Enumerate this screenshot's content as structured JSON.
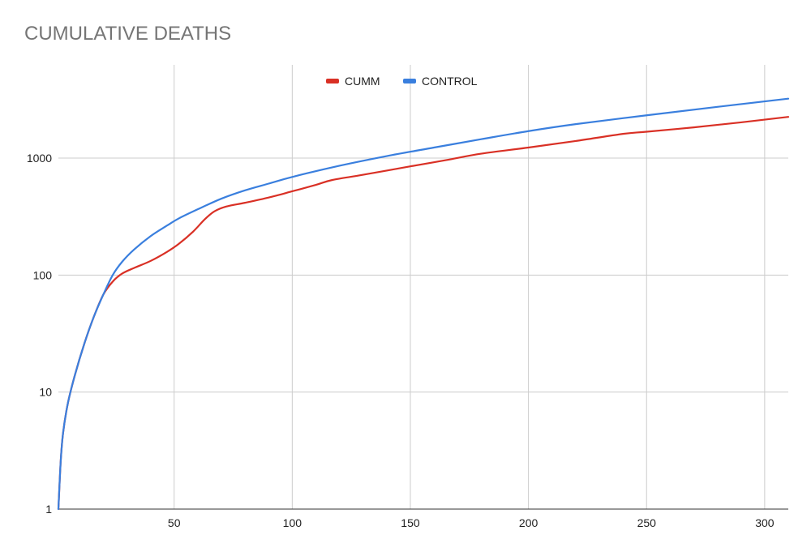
{
  "chart_data": {
    "type": "line",
    "title": "CUMULATIVE DEATHS",
    "xlabel": "",
    "ylabel": "",
    "x_scale": "linear",
    "y_scale": "log",
    "xlim": [
      1,
      310
    ],
    "ylim": [
      1,
      5000
    ],
    "x_ticks": [
      50,
      100,
      150,
      200,
      250,
      300
    ],
    "x_tick_labels": [
      "50",
      "100",
      "150",
      "200",
      "250",
      "300"
    ],
    "y_ticks": [
      1,
      10,
      100,
      1000
    ],
    "y_tick_labels": [
      "1",
      "10",
      "100",
      "1000"
    ],
    "grid": true,
    "legend_position": "top",
    "colors": {
      "CUMM": "#d93025",
      "CONTROL": "#3a7fde"
    },
    "series": [
      {
        "name": "CUMM",
        "color": "#d93025",
        "points": [
          [
            1,
            1
          ],
          [
            2,
            2.6
          ],
          [
            3,
            4.5
          ],
          [
            5,
            8
          ],
          [
            8,
            14
          ],
          [
            12,
            26
          ],
          [
            16,
            44
          ],
          [
            20,
            68
          ],
          [
            24,
            88
          ],
          [
            28,
            103
          ],
          [
            33,
            115
          ],
          [
            40,
            132
          ],
          [
            47,
            158
          ],
          [
            52,
            185
          ],
          [
            58,
            235
          ],
          [
            63,
            300
          ],
          [
            67,
            350
          ],
          [
            72,
            385
          ],
          [
            80,
            415
          ],
          [
            90,
            460
          ],
          [
            100,
            520
          ],
          [
            110,
            590
          ],
          [
            117,
            650
          ],
          [
            130,
            720
          ],
          [
            150,
            850
          ],
          [
            165,
            960
          ],
          [
            180,
            1090
          ],
          [
            200,
            1230
          ],
          [
            220,
            1400
          ],
          [
            240,
            1610
          ],
          [
            250,
            1680
          ],
          [
            270,
            1830
          ],
          [
            290,
            2020
          ],
          [
            310,
            2250
          ]
        ]
      },
      {
        "name": "CONTROL",
        "color": "#3a7fde",
        "points": [
          [
            1,
            1
          ],
          [
            2,
            2.6
          ],
          [
            3,
            4.5
          ],
          [
            5,
            8
          ],
          [
            8,
            14
          ],
          [
            12,
            26
          ],
          [
            16,
            44
          ],
          [
            20,
            68
          ],
          [
            24,
            100
          ],
          [
            28,
            130
          ],
          [
            33,
            165
          ],
          [
            40,
            215
          ],
          [
            47,
            265
          ],
          [
            52,
            305
          ],
          [
            60,
            365
          ],
          [
            70,
            450
          ],
          [
            80,
            530
          ],
          [
            90,
            605
          ],
          [
            100,
            690
          ],
          [
            120,
            860
          ],
          [
            140,
            1040
          ],
          [
            160,
            1230
          ],
          [
            180,
            1450
          ],
          [
            200,
            1700
          ],
          [
            220,
            1950
          ],
          [
            250,
            2320
          ],
          [
            280,
            2740
          ],
          [
            310,
            3220
          ]
        ]
      }
    ]
  }
}
